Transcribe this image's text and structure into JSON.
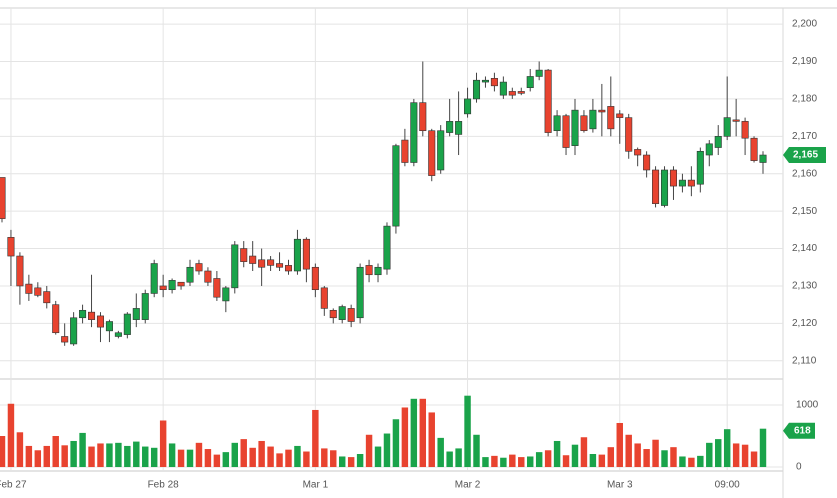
{
  "chart_data": {
    "type": "candlestick",
    "categories": [
      null,
      "Feb 27",
      null,
      null,
      null,
      null,
      null,
      null,
      null,
      null,
      null,
      null,
      null,
      null,
      null,
      null,
      null,
      null,
      "Feb 28",
      null,
      null,
      null,
      null,
      null,
      null,
      null,
      null,
      null,
      null,
      null,
      null,
      null,
      null,
      null,
      null,
      "Mar 1",
      null,
      null,
      null,
      null,
      null,
      null,
      null,
      null,
      null,
      null,
      null,
      null,
      null,
      null,
      null,
      null,
      "Mar 2",
      null,
      null,
      null,
      null,
      null,
      null,
      null,
      null,
      null,
      null,
      null,
      null,
      null,
      null,
      null,
      null,
      "Mar 3",
      null,
      null,
      null,
      null,
      null,
      null,
      null,
      null,
      null,
      null,
      null,
      "09:00",
      null,
      null,
      null,
      null
    ],
    "open": [
      2159,
      2143,
      2138,
      2130.5,
      2129.5,
      2128.5,
      2125,
      2116.5,
      2114.5,
      2121.5,
      2123,
      2122,
      2118,
      2116.5,
      2117,
      2121,
      2121,
      2128,
      2130,
      2129,
      2131,
      2131,
      2136,
      2134,
      2132,
      2126,
      2129.5,
      2140,
      2138,
      2137,
      2137,
      2136,
      2135.5,
      2134,
      2142.5,
      2135,
      2129.5,
      2123.5,
      2121,
      2124,
      2121.5,
      2135.5,
      2133,
      2134.5,
      2146,
      2169,
      2163,
      2179,
      2171.5,
      2161,
      2171,
      2170.5,
      2176,
      2180,
      2184.5,
      2185.5,
      2181,
      2182,
      2182,
      2183,
      2186,
      2187.7,
      2171.5,
      2175.5,
      2167.5,
      2175.5,
      2172,
      2177,
      2178,
      2176,
      2175,
      2166.5,
      2165,
      2161,
      2151.5,
      2161,
      2156.7,
      2158.3,
      2157.2,
      2165,
      2167,
      2170,
      2174.4,
      2174,
      2169.5,
      2163
    ],
    "high": [
      2159,
      2145,
      2139,
      2133,
      2131,
      2130,
      2126,
      2120,
      2123,
      2125,
      2133,
      2123,
      2121,
      2118,
      2123,
      2128,
      2129,
      2137,
      2133,
      2132,
      2131,
      2137,
      2137,
      2135,
      2134,
      2130,
      2142,
      2142,
      2142,
      2140,
      2138,
      2139,
      2137,
      2145,
      2143,
      2136,
      2130,
      2124,
      2125,
      2125,
      2136,
      2137,
      2136,
      2147,
      2168,
      2172,
      2180,
      2190,
      2172,
      2173,
      2180,
      2182,
      2183,
      2187,
      2186,
      2187,
      2186,
      2183,
      2183,
      2188,
      2190,
      2188,
      2177,
      2176,
      2180,
      2177,
      2180,
      2184,
      2186,
      2177,
      2176,
      2167,
      2166,
      2162,
      2162,
      2162,
      2160,
      2162,
      2167,
      2169,
      2173,
      2186,
      2180,
      2175,
      2170,
      2166
    ],
    "low": [
      2147,
      2130,
      2125,
      2126,
      2127,
      2124,
      2117,
      2114,
      2114,
      2120,
      2119,
      2115,
      2115,
      2116,
      2116,
      2119,
      2120,
      2127,
      2127,
      2128,
      2129,
      2130,
      2133,
      2130,
      2126,
      2123,
      2128,
      2135,
      2134,
      2130,
      2134,
      2134,
      2133,
      2133,
      2131,
      2127,
      2122,
      2120,
      2120,
      2119,
      2120,
      2131,
      2131,
      2133,
      2144,
      2162,
      2162,
      2170,
      2158,
      2160,
      2170,
      2165,
      2175,
      2179,
      2183,
      2182,
      2180,
      2180,
      2181,
      2182,
      2185,
      2170,
      2170,
      2165,
      2165,
      2171,
      2171,
      2170,
      2170,
      2168,
      2164,
      2162,
      2159,
      2151,
      2151,
      2153,
      2155,
      2154,
      2155,
      2162,
      2165,
      2169,
      2170,
      2165,
      2163,
      2160
    ],
    "close": [
      2148,
      2138,
      2130,
      2128,
      2127.5,
      2125.5,
      2117.5,
      2115,
      2121.5,
      2123.5,
      2121,
      2119,
      2120.5,
      2117.5,
      2122.5,
      2124,
      2128,
      2136,
      2129,
      2131.5,
      2130,
      2135,
      2134,
      2131,
      2127,
      2129.5,
      2141,
      2136.5,
      2136,
      2135,
      2135.5,
      2135,
      2134,
      2142.5,
      2134.5,
      2129,
      2124,
      2121.5,
      2124.5,
      2120.5,
      2135,
      2133,
      2135,
      2146,
      2167.5,
      2163,
      2179,
      2171.5,
      2159.5,
      2171.5,
      2174,
      2174,
      2180,
      2185,
      2185,
      2183.5,
      2184.5,
      2181,
      2181.5,
      2186,
      2187.7,
      2171,
      2175.5,
      2167,
      2177,
      2171.5,
      2177,
      2176.5,
      2172,
      2175,
      2166,
      2165,
      2161,
      2152,
      2161,
      2156.7,
      2158.3,
      2156.7,
      2166,
      2168,
      2170,
      2175,
      2174,
      2169.5,
      2163.5,
      2165
    ],
    "up_color": "#1aa34a",
    "down_color": "#e8432f",
    "ylim": [
      2105.4,
      2204.3
    ],
    "yticks": [
      {
        "value": 2110,
        "label": "2,110"
      },
      {
        "value": 2120,
        "label": "2,120"
      },
      {
        "value": 2130,
        "label": "2,130"
      },
      {
        "value": 2140,
        "label": "2,140"
      },
      {
        "value": 2150,
        "label": "2,150"
      },
      {
        "value": 2160,
        "label": "2,160"
      },
      {
        "value": 2170,
        "label": "2,170"
      },
      {
        "value": 2180,
        "label": "2,180"
      },
      {
        "value": 2190,
        "label": "2,190"
      },
      {
        "value": 2200,
        "label": "2,200"
      }
    ],
    "last_price": {
      "value": 2165,
      "label": "2,165"
    },
    "grid": true,
    "volume": {
      "values": [
        500,
        1020,
        560,
        340,
        270,
        340,
        500,
        350,
        420,
        550,
        330,
        380,
        380,
        390,
        340,
        410,
        330,
        310,
        750,
        380,
        280,
        280,
        390,
        290,
        200,
        240,
        390,
        450,
        310,
        420,
        330,
        220,
        280,
        340,
        250,
        920,
        300,
        270,
        170,
        160,
        210,
        520,
        330,
        540,
        770,
        960,
        1100,
        1100,
        880,
        470,
        250,
        300,
        1150,
        520,
        160,
        180,
        150,
        200,
        160,
        170,
        240,
        270,
        420,
        190,
        360,
        480,
        210,
        200,
        320,
        710,
        520,
        380,
        290,
        440,
        270,
        320,
        170,
        150,
        180,
        390,
        450,
        610,
        380,
        360,
        250,
        618
      ],
      "ylim": [
        -48,
        1403
      ],
      "yticks": [
        0,
        1000
      ]
    }
  }
}
